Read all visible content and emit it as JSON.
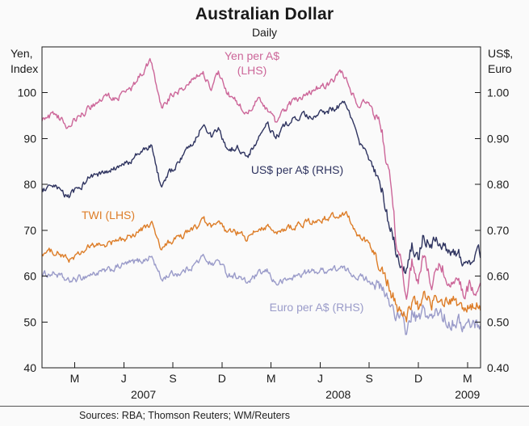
{
  "title": "Australian Dollar",
  "subtitle": "Daily",
  "axis_corner": {
    "left1": "Yen,",
    "left2": "Index",
    "right1": "US$,",
    "right2": "Euro"
  },
  "footer": {
    "sources": "Sources: RBA; Thomson Reuters; WM/Reuters"
  },
  "chart_data": {
    "type": "line",
    "title": "Australian Dollar",
    "subtitle": "Daily",
    "x_unit": "months since 2007-01-01",
    "x_range": [
      0,
      26.8
    ],
    "x_ticks": [
      [
        2,
        "M"
      ],
      [
        5,
        "J"
      ],
      [
        8,
        "S"
      ],
      [
        11,
        "D"
      ],
      [
        14,
        "M"
      ],
      [
        17,
        "J"
      ],
      [
        20,
        "S"
      ],
      [
        23,
        "D"
      ],
      [
        26,
        "M"
      ]
    ],
    "year_labels": [
      [
        6.2,
        "2007"
      ],
      [
        18.1,
        "2008"
      ],
      [
        26,
        "2009"
      ]
    ],
    "left_axis": {
      "label": "Yen, Index",
      "min": 40,
      "max": 110,
      "ticks": [
        40,
        50,
        60,
        70,
        80,
        90,
        100
      ]
    },
    "right_axis": {
      "label": "US$, Euro",
      "min": 0.4,
      "max": 1.1,
      "ticks": [
        0.4,
        0.5,
        0.6,
        0.7,
        0.8,
        0.9,
        1.0
      ]
    },
    "grid": false,
    "legend_position": "inline-annotations",
    "annotations": {
      "yen_line1": "Yen per A$",
      "yen_line2": "(LHS)",
      "usd": "US$ per A$ (RHS)",
      "twi": "TWI (LHS)",
      "euro": "Euro per A$ (RHS)"
    },
    "series": [
      {
        "id": "euro",
        "name": "Euro per A$",
        "axis": "right",
        "color": "#9a9bc9",
        "points": [
          [
            0,
            0.603
          ],
          [
            0.8,
            0.606
          ],
          [
            1.6,
            0.588
          ],
          [
            2.2,
            0.594
          ],
          [
            3,
            0.604
          ],
          [
            4,
            0.611
          ],
          [
            5,
            0.625
          ],
          [
            6.3,
            0.636
          ],
          [
            6.7,
            0.643
          ],
          [
            7.3,
            0.592
          ],
          [
            7.8,
            0.604
          ],
          [
            8.5,
            0.607
          ],
          [
            9.3,
            0.625
          ],
          [
            9.9,
            0.643
          ],
          [
            10.4,
            0.625
          ],
          [
            10.8,
            0.635
          ],
          [
            11.3,
            0.605
          ],
          [
            12,
            0.6
          ],
          [
            12.5,
            0.585
          ],
          [
            13.3,
            0.605
          ],
          [
            13.8,
            0.61
          ],
          [
            14.3,
            0.583
          ],
          [
            15,
            0.592
          ],
          [
            16,
            0.607
          ],
          [
            17.3,
            0.613
          ],
          [
            18.3,
            0.617
          ],
          [
            19.3,
            0.6
          ],
          [
            19.8,
            0.595
          ],
          [
            20.3,
            0.585
          ],
          [
            20.8,
            0.567
          ],
          [
            21.3,
            0.54
          ],
          [
            21.7,
            0.515
          ],
          [
            22,
            0.5
          ],
          [
            22.3,
            0.478
          ],
          [
            22.6,
            0.52
          ],
          [
            23,
            0.5
          ],
          [
            23.3,
            0.525
          ],
          [
            23.8,
            0.505
          ],
          [
            24.3,
            0.525
          ],
          [
            24.8,
            0.5
          ],
          [
            25.3,
            0.505
          ],
          [
            25.8,
            0.49
          ],
          [
            26.3,
            0.497
          ]
        ]
      },
      {
        "id": "twi",
        "name": "TWI",
        "axis": "left",
        "color": "#dd7d28",
        "points": [
          [
            0,
            65
          ],
          [
            0.8,
            65.5
          ],
          [
            1.6,
            63.5
          ],
          [
            2.2,
            64.5
          ],
          [
            3,
            66.5
          ],
          [
            4,
            67
          ],
          [
            5,
            68
          ],
          [
            6.3,
            70.5
          ],
          [
            6.7,
            71.5
          ],
          [
            7.3,
            65.5
          ],
          [
            7.8,
            67.5
          ],
          [
            8.5,
            68.5
          ],
          [
            9.3,
            70.5
          ],
          [
            9.9,
            72
          ],
          [
            10.4,
            70.5
          ],
          [
            10.8,
            71.5
          ],
          [
            11.3,
            69.5
          ],
          [
            12,
            69.5
          ],
          [
            12.5,
            68
          ],
          [
            13.3,
            70.5
          ],
          [
            13.8,
            71
          ],
          [
            14.3,
            69
          ],
          [
            15,
            70.5
          ],
          [
            16,
            71.5
          ],
          [
            17.3,
            72.5
          ],
          [
            18.3,
            73.5
          ],
          [
            18.6,
            74
          ],
          [
            19.3,
            68.5
          ],
          [
            19.8,
            67.5
          ],
          [
            20.3,
            65
          ],
          [
            20.8,
            62
          ],
          [
            21.3,
            57
          ],
          [
            21.7,
            53.5
          ],
          [
            22,
            51.5
          ],
          [
            22.3,
            50.5
          ],
          [
            22.6,
            55
          ],
          [
            23,
            53
          ],
          [
            23.3,
            56
          ],
          [
            23.8,
            54
          ],
          [
            24.3,
            56
          ],
          [
            24.8,
            53.5
          ],
          [
            25.3,
            54
          ],
          [
            25.8,
            52.8
          ],
          [
            26.3,
            53
          ]
        ]
      },
      {
        "id": "usd",
        "name": "US$ per A$",
        "axis": "right",
        "color": "#2f3460",
        "points": [
          [
            0,
            0.787
          ],
          [
            0.8,
            0.792
          ],
          [
            1.6,
            0.773
          ],
          [
            2.2,
            0.79
          ],
          [
            3,
            0.818
          ],
          [
            4,
            0.825
          ],
          [
            5,
            0.842
          ],
          [
            6.3,
            0.876
          ],
          [
            6.7,
            0.885
          ],
          [
            7.3,
            0.79
          ],
          [
            7.8,
            0.825
          ],
          [
            8.5,
            0.855
          ],
          [
            9.3,
            0.895
          ],
          [
            9.9,
            0.937
          ],
          [
            10.4,
            0.9
          ],
          [
            10.8,
            0.92
          ],
          [
            11.3,
            0.875
          ],
          [
            12,
            0.88
          ],
          [
            12.5,
            0.857
          ],
          [
            13.3,
            0.905
          ],
          [
            13.8,
            0.93
          ],
          [
            14.3,
            0.9
          ],
          [
            15,
            0.935
          ],
          [
            16,
            0.95
          ],
          [
            16.5,
            0.942
          ],
          [
            17.3,
            0.958
          ],
          [
            18.3,
            0.973
          ],
          [
            18.6,
            0.978
          ],
          [
            19.3,
            0.895
          ],
          [
            19.8,
            0.87
          ],
          [
            20.3,
            0.83
          ],
          [
            20.8,
            0.78
          ],
          [
            21.3,
            0.7
          ],
          [
            21.7,
            0.65
          ],
          [
            22,
            0.62
          ],
          [
            22.3,
            0.605
          ],
          [
            22.6,
            0.67
          ],
          [
            23,
            0.64
          ],
          [
            23.3,
            0.695
          ],
          [
            23.8,
            0.66
          ],
          [
            24.3,
            0.685
          ],
          [
            24.8,
            0.645
          ],
          [
            25.3,
            0.655
          ],
          [
            25.8,
            0.635
          ],
          [
            26.3,
            0.645
          ]
        ]
      },
      {
        "id": "yen",
        "name": "Yen per A$",
        "axis": "left",
        "color": "#cc6699",
        "points": [
          [
            0,
            94
          ],
          [
            0.8,
            95.5
          ],
          [
            1.6,
            92.5
          ],
          [
            2.2,
            94.5
          ],
          [
            3,
            97
          ],
          [
            4,
            99.5
          ],
          [
            4.5,
            98.5
          ],
          [
            5.5,
            101
          ],
          [
            6.3,
            105.5
          ],
          [
            6.7,
            107
          ],
          [
            7.3,
            96.5
          ],
          [
            7.8,
            99
          ],
          [
            8.5,
            100.5
          ],
          [
            9.3,
            103.5
          ],
          [
            9.8,
            105
          ],
          [
            10.3,
            101
          ],
          [
            10.8,
            104.5
          ],
          [
            11.3,
            100
          ],
          [
            12,
            97.5
          ],
          [
            12.5,
            95
          ],
          [
            13.2,
            98.5
          ],
          [
            13.8,
            96
          ],
          [
            14.3,
            93.5
          ],
          [
            15,
            97
          ],
          [
            16,
            99.5
          ],
          [
            16.8,
            101
          ],
          [
            17.5,
            102
          ],
          [
            18.3,
            104.5
          ],
          [
            18.7,
            102
          ],
          [
            19.3,
            97
          ],
          [
            19.8,
            98.5
          ],
          [
            20.3,
            95
          ],
          [
            20.8,
            91
          ],
          [
            21.3,
            80
          ],
          [
            21.7,
            66
          ],
          [
            22,
            62
          ],
          [
            22.3,
            56.5
          ],
          [
            22.6,
            63
          ],
          [
            23,
            59
          ],
          [
            23.3,
            63.5
          ],
          [
            23.8,
            58
          ],
          [
            24.3,
            62.5
          ],
          [
            24.8,
            60
          ],
          [
            25.3,
            58.5
          ],
          [
            25.8,
            57
          ],
          [
            26.3,
            57.5
          ]
        ]
      }
    ]
  }
}
